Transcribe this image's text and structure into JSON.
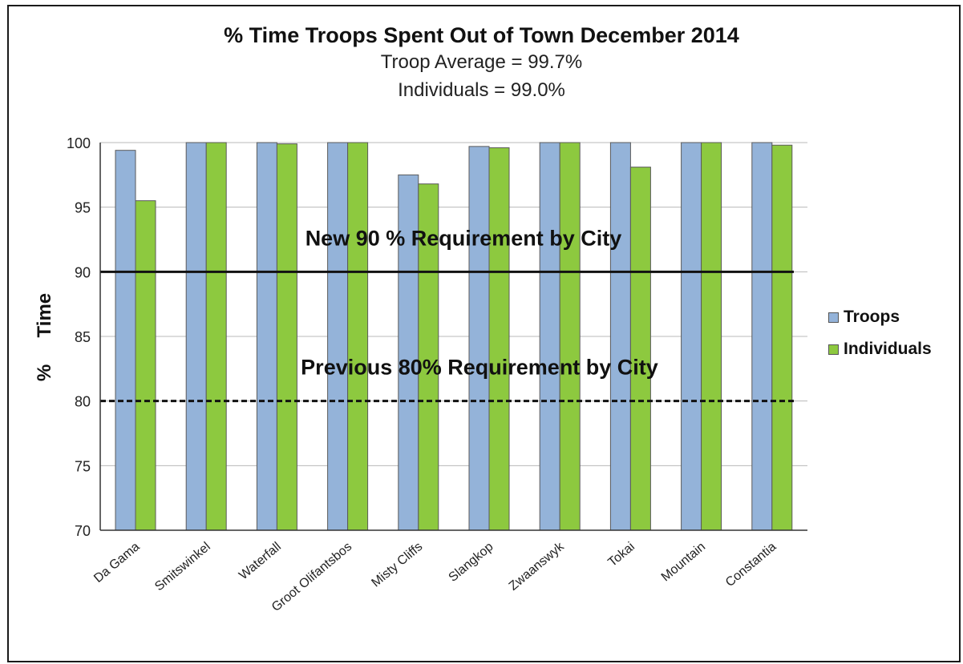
{
  "chart_data": {
    "type": "bar",
    "title": "% Time Troops Spent Out of Town December 2014",
    "subtitles": [
      "Troop Average = 99.7%",
      "Individuals = 99.0%"
    ],
    "ylabel": "%     Time",
    "xlabel": "",
    "ylim": [
      70,
      100
    ],
    "yticks": [
      70,
      75,
      80,
      85,
      90,
      95,
      100
    ],
    "grid": true,
    "legend_position": "right",
    "categories": [
      "Da Gama",
      "Smitswinkel",
      "Waterfall",
      "Groot Olifantsbos",
      "Misty Cliffs",
      "Slangkop",
      "Zwaanswyk",
      "Tokai",
      "Mountain",
      "Constantia"
    ],
    "series": [
      {
        "name": "Troops",
        "color": "#94B3D9",
        "values": [
          99.4,
          100,
          100,
          100,
          97.5,
          99.7,
          100,
          100,
          100,
          100
        ]
      },
      {
        "name": "Individuals",
        "color": "#8DC93F",
        "values": [
          95.5,
          100,
          99.9,
          100,
          96.8,
          99.6,
          100,
          98.1,
          100,
          99.8
        ]
      }
    ],
    "reference_lines": [
      {
        "value": 90,
        "style": "solid",
        "label": "New 90 % Requirement by City"
      },
      {
        "value": 80,
        "style": "dashed",
        "label": "Previous 80% Requirement by City"
      }
    ]
  }
}
